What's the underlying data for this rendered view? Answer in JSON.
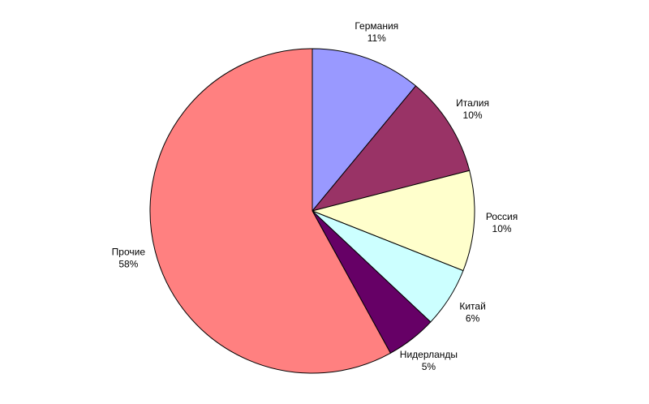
{
  "chart_data": {
    "type": "pie",
    "categories": [
      "Германия",
      "Италия",
      "Россия",
      "Китай",
      "Нидерланды",
      "Прочие"
    ],
    "values": [
      11,
      10,
      10,
      6,
      5,
      58
    ],
    "value_labels": [
      "11%",
      "10%",
      "10%",
      "6%",
      "5%",
      "58%"
    ],
    "colors": [
      "#9999ff",
      "#993366",
      "#ffffcc",
      "#ccffff",
      "#660066",
      "#ff8080"
    ]
  }
}
